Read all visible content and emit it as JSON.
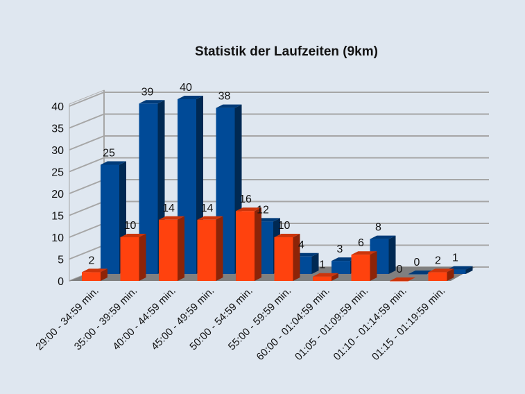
{
  "chart_data": {
    "type": "bar",
    "title": "Statistik der Laufzeiten (9km)",
    "categories": [
      "29:00 - 34:59 min.",
      "35:00 - 39:59 min.",
      "40:00 - 44:59 min.",
      "45:00 - 49:59 min.",
      "50:00 - 54:59 min.",
      "55:00 - 59:59 min.",
      "60:00 - 01:04:59 min.",
      "01:05 - 01:09:59 min.",
      "01:10 - 01:14:59 min.",
      "01:15 - 01:19:59 min."
    ],
    "series": [
      {
        "values": [
          25,
          39,
          40,
          38,
          12,
          4,
          3,
          8,
          0,
          1
        ],
        "color": "#004a97"
      },
      {
        "values": [
          2,
          10,
          14,
          14,
          16,
          10,
          1,
          6,
          0,
          2
        ],
        "color": "#ff420e"
      }
    ],
    "yticks": [
      0,
      5,
      10,
      15,
      20,
      25,
      30,
      35,
      40
    ],
    "ylim": [
      0,
      40
    ],
    "grid": true,
    "style": "3d",
    "legend": "none"
  }
}
